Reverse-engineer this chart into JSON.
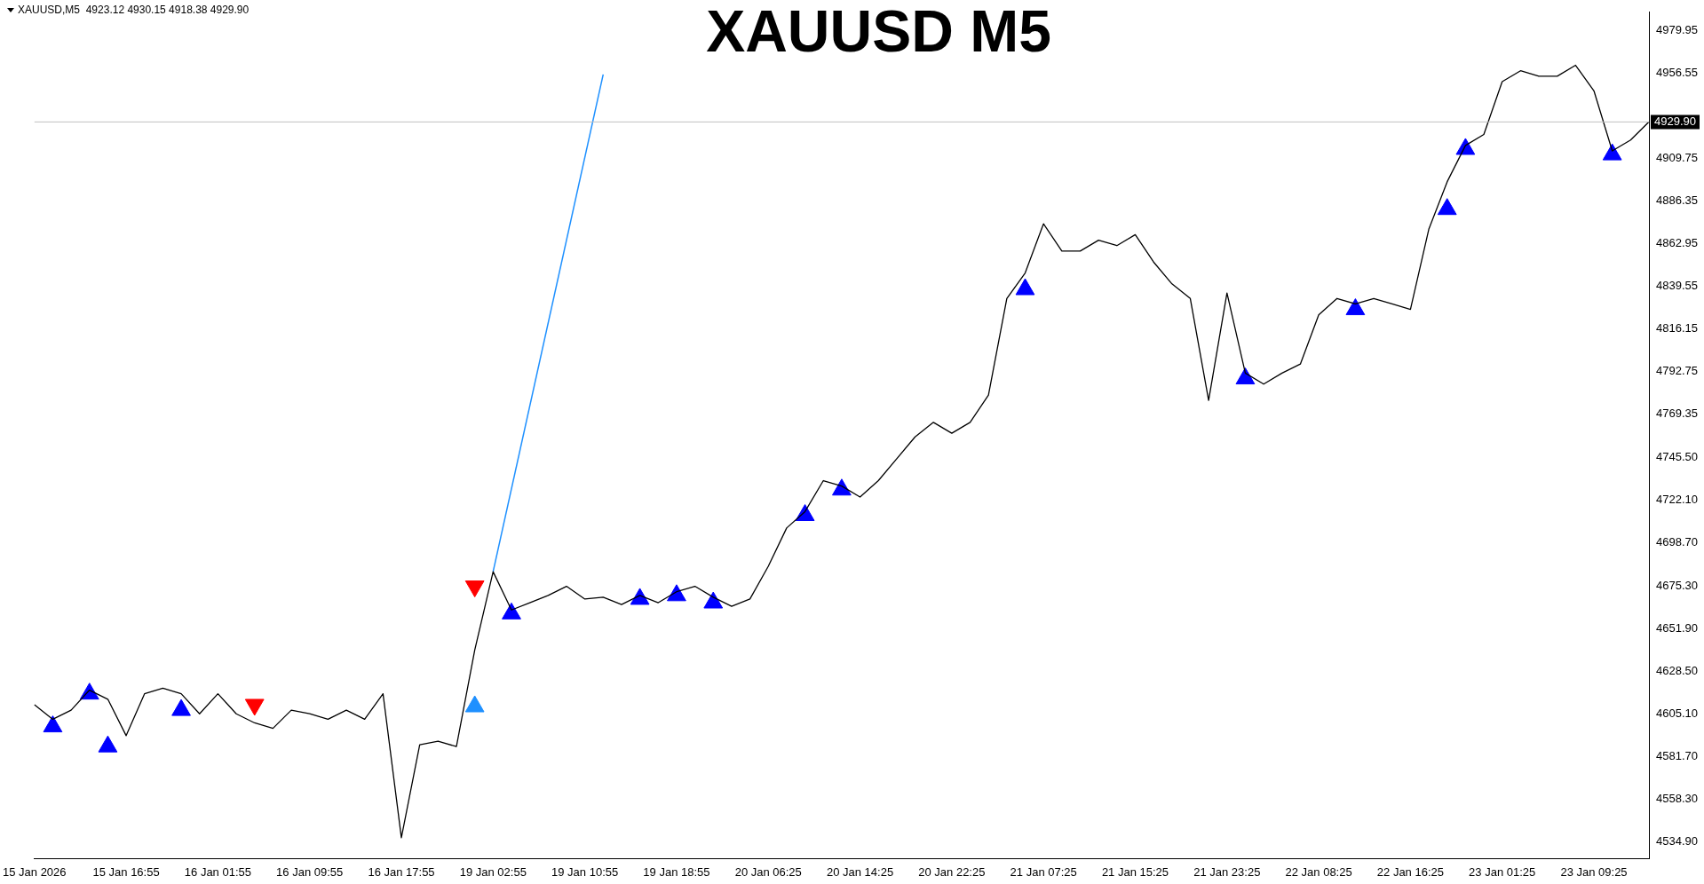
{
  "chart_data": {
    "type": "line",
    "title": "XAUUSD M5",
    "annotations": [
      "XAUUSD,M5  4923.12 4930.15 4918.38 4929.90"
    ],
    "categories": [
      "15 Jan 2026",
      null,
      null,
      null,
      null,
      "15 Jan 16:55",
      null,
      null,
      null,
      null,
      "16 Jan 01:55",
      null,
      null,
      null,
      null,
      "16 Jan 09:55",
      null,
      null,
      null,
      null,
      "16 Jan 17:55",
      null,
      null,
      null,
      null,
      "19 Jan 02:55",
      null,
      null,
      null,
      null,
      "19 Jan 10:55",
      null,
      null,
      null,
      null,
      "19 Jan 18:55",
      null,
      null,
      null,
      null,
      "20 Jan 06:25",
      null,
      null,
      null,
      null,
      "20 Jan 14:25",
      null,
      null,
      null,
      null,
      "20 Jan 22:25",
      null,
      null,
      null,
      null,
      "21 Jan 07:25",
      null,
      null,
      null,
      null,
      "21 Jan 15:25",
      null,
      null,
      null,
      null,
      "21 Jan 23:25",
      null,
      null,
      null,
      null,
      "22 Jan 08:25",
      null,
      null,
      null,
      null,
      "22 Jan 16:25",
      null,
      null,
      null,
      null,
      "23 Jan 01:25",
      null,
      null,
      null,
      null,
      "23 Jan 09:25",
      null,
      null,
      null
    ],
    "series": [
      {
        "color": "#000000",
        "values": [
          4610,
          4602,
          4607,
          4618,
          4613,
          4593,
          4616,
          4619,
          4616,
          4605,
          4616,
          4605,
          4600,
          4597,
          4607,
          4605,
          4602,
          4607,
          4602,
          4616,
          4537,
          4588,
          4590,
          4587,
          4640,
          4683,
          4662,
          4666,
          4670,
          4675,
          4668,
          4669,
          4665,
          4670,
          4666,
          4672,
          4675,
          4669,
          4664,
          4668,
          4686,
          4707,
          4716,
          4733,
          4730,
          4724,
          4733,
          4745,
          4757,
          4765,
          4759,
          4765,
          4780,
          4833,
          4847,
          4874,
          4859,
          4859,
          4865,
          4862,
          4868,
          4853,
          4841,
          4833,
          4777,
          4836,
          4792,
          4786,
          4792,
          4797,
          4824,
          4833,
          4830,
          4833,
          4830,
          4827,
          4871,
          4897,
          4917,
          4923,
          4952,
          4958,
          4955,
          4955,
          4961,
          4947,
          4914,
          4920,
          4930
        ]
      },
      {
        "type": "scatter",
        "marker": "triangle",
        "color": "#0000ff",
        "values": [
          null,
          4598,
          null,
          4616,
          4587,
          null,
          null,
          null,
          4607,
          null,
          null,
          null,
          null,
          null,
          null,
          null,
          null,
          null,
          null,
          null,
          null,
          null,
          null,
          null,
          null,
          null,
          4660,
          null,
          null,
          null,
          null,
          null,
          null,
          4668,
          null,
          4670,
          null,
          4666,
          null,
          null,
          null,
          null,
          4714,
          null,
          4728,
          null,
          null,
          null,
          null,
          null,
          null,
          null,
          null,
          null,
          4838,
          null,
          null,
          null,
          null,
          null,
          null,
          null,
          null,
          null,
          null,
          null,
          4789,
          null,
          null,
          null,
          null,
          null,
          4827,
          null,
          null,
          null,
          null,
          4882,
          4915,
          null,
          null,
          null,
          null,
          null,
          null,
          null,
          4912,
          null,
          null
        ]
      },
      {
        "type": "scatter",
        "marker": "triangle",
        "color": "#ff0000",
        "values": [
          null,
          null,
          null,
          null,
          null,
          null,
          null,
          null,
          null,
          null,
          null,
          null,
          4610,
          null,
          null,
          null,
          null,
          null,
          null,
          null,
          null,
          null,
          null,
          null,
          4675,
          null,
          null,
          null,
          null,
          null,
          null,
          null,
          null,
          null,
          null,
          null,
          null,
          null,
          null,
          null,
          null,
          null,
          null,
          null,
          null,
          null,
          null,
          null,
          null,
          null,
          null,
          null,
          null,
          null,
          null,
          null,
          null,
          null,
          null,
          null,
          null,
          null,
          null,
          null,
          null,
          null,
          null,
          null,
          null,
          null,
          null,
          null,
          null,
          null,
          null,
          null,
          null,
          null,
          null,
          null,
          null,
          null,
          null,
          null,
          null,
          null,
          null,
          null,
          null
        ]
      },
      {
        "type": "scatter",
        "marker": "triangle",
        "color": "#1e90ff",
        "values": [
          null,
          null,
          null,
          null,
          null,
          null,
          null,
          null,
          null,
          null,
          null,
          null,
          null,
          null,
          null,
          null,
          null,
          null,
          null,
          null,
          null,
          null,
          null,
          null,
          4609,
          null,
          null,
          null,
          null,
          null,
          null,
          null,
          null,
          null,
          null,
          null,
          null,
          null,
          null,
          null,
          null,
          null,
          null,
          null,
          null,
          null,
          null,
          null,
          null,
          null,
          null,
          null,
          null,
          null,
          null,
          null,
          null,
          null,
          null,
          null,
          null,
          null,
          null,
          null,
          null,
          null,
          null,
          null,
          null,
          null,
          null,
          null,
          null,
          null,
          null,
          null,
          null,
          null,
          null,
          null,
          null,
          null,
          null,
          null,
          null,
          null,
          null,
          null,
          null
        ]
      },
      {
        "type": "line",
        "color": "#1e90ff",
        "values": [
          null,
          null,
          null,
          null,
          null,
          null,
          null,
          null,
          null,
          null,
          null,
          null,
          null,
          null,
          null,
          null,
          null,
          null,
          null,
          null,
          null,
          null,
          null,
          null,
          null,
          4683,
          null,
          null,
          null,
          null,
          null,
          4956,
          null,
          null,
          null,
          null,
          null,
          null,
          null,
          null,
          null,
          null,
          null,
          null,
          null,
          null,
          null,
          null,
          null,
          null,
          null,
          null,
          null,
          null,
          null,
          null,
          null,
          null,
          null,
          null,
          null,
          null,
          null,
          null,
          null,
          null,
          null,
          null,
          null,
          null,
          null,
          null,
          null,
          null,
          null,
          null,
          null,
          null,
          null,
          null,
          null,
          null,
          null,
          null,
          null,
          null,
          null,
          null,
          null
        ]
      }
    ],
    "ylim": [
      4525.5,
      4990.5
    ],
    "yticks": [
      {
        "value": 4534.9,
        "label": "4534.90"
      },
      {
        "value": 4558.3,
        "label": "4558.30"
      },
      {
        "value": 4581.7,
        "label": "4581.70"
      },
      {
        "value": 4605.1,
        "label": "4605.10"
      },
      {
        "value": 4628.5,
        "label": "4628.50"
      },
      {
        "value": 4651.9,
        "label": "4651.90"
      },
      {
        "value": 4675.3,
        "label": "4675.30"
      },
      {
        "value": 4698.7,
        "label": "4698.70"
      },
      {
        "value": 4722.1,
        "label": "4722.10"
      },
      {
        "value": 4745.5,
        "label": "4745.50"
      },
      {
        "value": 4769.35,
        "label": "4769.35"
      },
      {
        "value": 4792.75,
        "label": "4792.75"
      },
      {
        "value": 4816.15,
        "label": "4816.15"
      },
      {
        "value": 4839.55,
        "label": "4839.55"
      },
      {
        "value": 4862.95,
        "label": "4862.95"
      },
      {
        "value": 4886.35,
        "label": "4886.35"
      },
      {
        "value": 4909.75,
        "label": "4909.75"
      },
      {
        "value": 4956.55,
        "label": "4956.55"
      },
      {
        "value": 4979.95,
        "label": "4979.95"
      }
    ],
    "ref_lines": [
      {
        "axis": "y",
        "value": 4929.9,
        "label": "4929.90",
        "color": "#c0c0c0"
      }
    ],
    "legend": false,
    "grid": false
  }
}
